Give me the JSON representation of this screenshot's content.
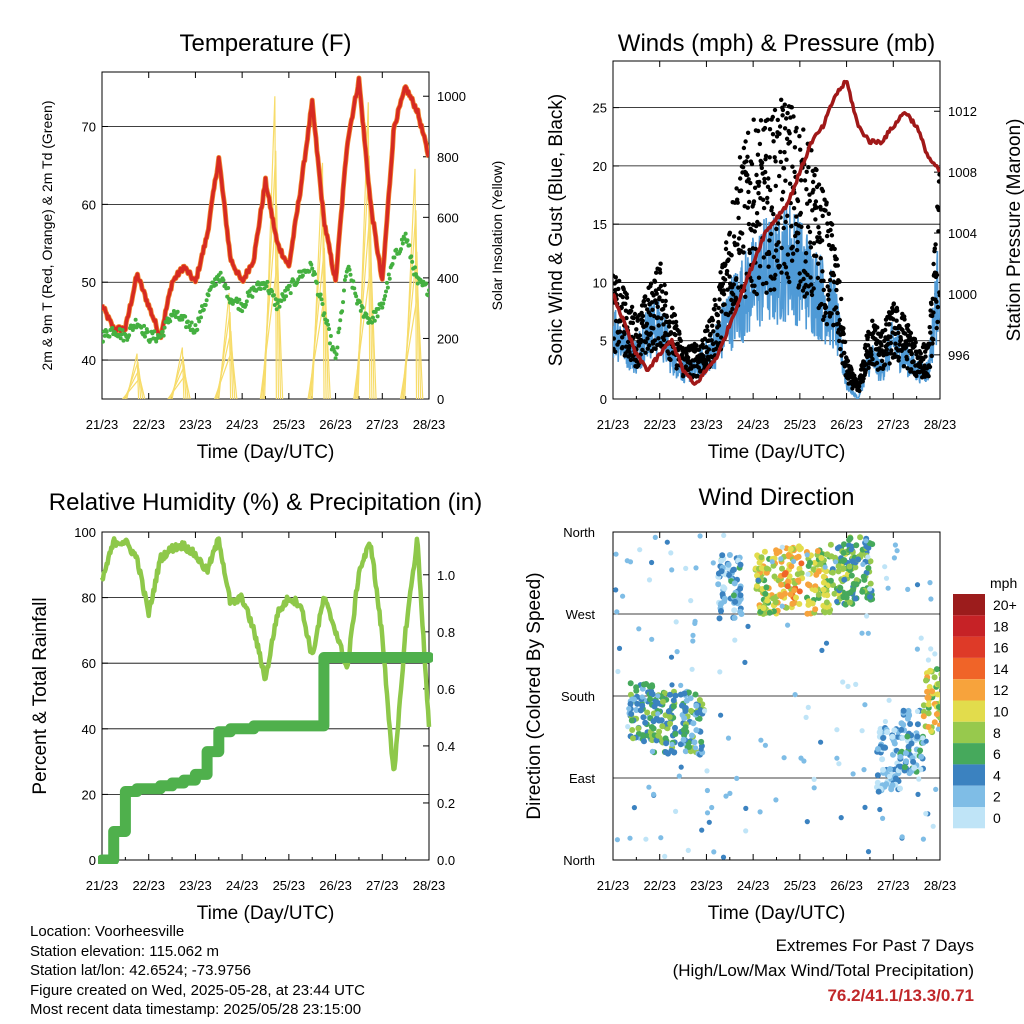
{
  "colors": {
    "t2m": "#d62a22",
    "t9m": "#f08a30",
    "td": "#44b040",
    "solar": "#f7dc6a",
    "wind": "#4f9ad6",
    "gust": "#000000",
    "pressure": "#a01818",
    "rh": "#8ec84a",
    "precip": "#4fb04c"
  },
  "x_ticks": [
    "21/23",
    "22/23",
    "23/23",
    "24/23",
    "25/23",
    "26/23",
    "27/23",
    "28/23"
  ],
  "x_label": "Time (Day/UTC)",
  "panels": {
    "temperature": {
      "title": "Temperature (F)",
      "ylabel_left": "2m & 9m T (Red, Orange) & 2m Td (Green)",
      "ylabel_right": "Solar Insolation (Yellow)"
    },
    "winds": {
      "title": "Winds (mph) & Pressure (mb)",
      "ylabel_left": "Sonic Wind & Gust (Blue, Black)",
      "ylabel_right": "Station Pressure (Maroon)"
    },
    "rh": {
      "title": "Relative Humidity (%) & Precipitation (in)",
      "ylabel_left": "Percent & Total Rainfall"
    },
    "direction": {
      "title": "Wind Direction",
      "ylabel_left": "Direction (Colored By Speed)",
      "legend_title": "mph"
    }
  },
  "info": [
    "Location: Voorheesville",
    "Station elevation: 115.062 m",
    "Station lat/lon: 42.6524; -73.9756",
    "Figure created on Wed, 2025-05-28, at 23:44 UTC",
    "Most recent data timestamp: 2025/05/28 23:15:00"
  ],
  "extremes": {
    "line1": "Extremes For Past 7 Days",
    "line2": "(High/Low/Max Wind/Total Precipitation)",
    "values": "76.2/41.1/13.3/0.71"
  },
  "chart_data": [
    {
      "type": "line",
      "panel": "temperature",
      "x": [
        0,
        0.25,
        0.5,
        0.75,
        1,
        1.25,
        1.5,
        1.75,
        2,
        2.25,
        2.5,
        2.75,
        3,
        3.25,
        3.5,
        3.75,
        4,
        4.25,
        4.5,
        4.75,
        5,
        5.25,
        5.5,
        5.75,
        6,
        6.25,
        6.5,
        6.75,
        7
      ],
      "series": [
        {
          "name": "2m T",
          "values": [
            47,
            44,
            44,
            51,
            47,
            43,
            50,
            52,
            50,
            56,
            66,
            53,
            50,
            53,
            63,
            55,
            52,
            62,
            73,
            58,
            50,
            68,
            76,
            60,
            50,
            70,
            75,
            72,
            66
          ]
        },
        {
          "name": "2m Td",
          "values": [
            43,
            44,
            43,
            45,
            43,
            43,
            46,
            45,
            44,
            48,
            51,
            48,
            47,
            49,
            50,
            47,
            49,
            51,
            52,
            46,
            40,
            52,
            47,
            45,
            47,
            53,
            56,
            50,
            49
          ]
        }
      ],
      "solar_peaks": [
        {
          "x": 0.75,
          "value": 150
        },
        {
          "x": 1.72,
          "value": 170
        },
        {
          "x": 2.72,
          "value": 350
        },
        {
          "x": 3.7,
          "value": 1000
        },
        {
          "x": 4.72,
          "value": 780
        },
        {
          "x": 5.7,
          "value": 980
        },
        {
          "x": 6.7,
          "value": 760
        }
      ],
      "ylim": [
        35,
        77
      ],
      "yticks": [
        40,
        50,
        60,
        70
      ],
      "ylim_right": [
        0,
        1080
      ],
      "yticks_right": [
        0,
        200,
        400,
        600,
        800,
        1000
      ]
    },
    {
      "type": "line",
      "panel": "winds",
      "x": [
        0,
        0.25,
        0.5,
        0.75,
        1,
        1.25,
        1.5,
        1.75,
        2,
        2.25,
        2.5,
        2.75,
        3,
        3.25,
        3.5,
        3.75,
        4,
        4.25,
        4.5,
        4.75,
        5,
        5.25,
        5.5,
        5.75,
        6,
        6.25,
        6.5,
        6.75,
        7
      ],
      "series": [
        {
          "name": "Sonic Wind",
          "values": [
            5,
            4,
            3,
            5,
            5,
            3,
            2,
            2,
            3,
            4,
            6,
            7,
            8,
            9,
            9,
            10,
            9,
            8,
            7,
            6,
            1,
            0,
            3,
            2,
            4,
            3,
            2,
            2,
            9
          ]
        },
        {
          "name": "Gust",
          "values": [
            9,
            8,
            6,
            8,
            10,
            7,
            4,
            4,
            5,
            8,
            14,
            18,
            20,
            20,
            21,
            22,
            20,
            18,
            15,
            12,
            3,
            1,
            6,
            5,
            7,
            6,
            4,
            4,
            17
          ]
        },
        {
          "name": "Station Pressure",
          "values": [
            1000,
            998,
            996,
            995,
            996,
            997,
            995,
            994,
            995,
            996,
            998,
            1000,
            1002,
            1004,
            1005,
            1006,
            1008,
            1010,
            1011,
            1013,
            1014,
            1011,
            1010,
            1010,
            1011,
            1012,
            1011,
            1009,
            1008
          ]
        }
      ],
      "ylim": [
        0,
        29
      ],
      "yticks": [
        0,
        5,
        10,
        15,
        20,
        25
      ],
      "ylim_right": [
        993.1,
        1015.3
      ],
      "yticks_right": [
        996,
        1000,
        1004,
        1008,
        1012
      ]
    },
    {
      "type": "line",
      "panel": "rh",
      "x": [
        0,
        0.25,
        0.5,
        0.75,
        1,
        1.25,
        1.5,
        1.75,
        2,
        2.25,
        2.5,
        2.75,
        3,
        3.25,
        3.5,
        3.75,
        4,
        4.25,
        4.5,
        4.75,
        5,
        5.25,
        5.5,
        5.75,
        6,
        6.25,
        6.5,
        6.75,
        7
      ],
      "series": [
        {
          "name": "Relative Humidity",
          "values": [
            85,
            97,
            97,
            92,
            75,
            92,
            95,
            96,
            93,
            88,
            98,
            78,
            80,
            70,
            55,
            75,
            80,
            78,
            62,
            80,
            70,
            58,
            88,
            97,
            68,
            25,
            70,
            98,
            40
          ]
        },
        {
          "name": "Total Rainfall",
          "values": [
            0,
            0.1,
            0.24,
            0.25,
            0.25,
            0.26,
            0.27,
            0.28,
            0.3,
            0.38,
            0.45,
            0.46,
            0.46,
            0.47,
            0.47,
            0.47,
            0.47,
            0.47,
            0.47,
            0.71,
            0.71,
            0.71,
            0.71,
            0.71,
            0.71,
            0.71,
            0.71,
            0.71,
            0.71
          ]
        }
      ],
      "ylim": [
        0,
        100
      ],
      "yticks": [
        0,
        20,
        40,
        60,
        80,
        100
      ],
      "ylim_right": [
        0,
        1.15
      ],
      "yticks_right": [
        0.0,
        0.2,
        0.4,
        0.6,
        0.8,
        1.0
      ]
    },
    {
      "type": "scatter",
      "panel": "direction",
      "yticks": [
        "North",
        "East",
        "South",
        "West",
        "North"
      ],
      "ylim": [
        0,
        360
      ],
      "clusters": [
        {
          "x": 0.6,
          "dir": 160,
          "speed": 5
        },
        {
          "x": 1.1,
          "dir": 150,
          "speed": 6
        },
        {
          "x": 1.7,
          "dir": 150,
          "speed": 5
        },
        {
          "x": 2.5,
          "dir": 300,
          "speed": 3
        },
        {
          "x": 3.3,
          "dir": 305,
          "speed": 9
        },
        {
          "x": 3.8,
          "dir": 310,
          "speed": 11
        },
        {
          "x": 4.4,
          "dir": 305,
          "speed": 9
        },
        {
          "x": 4.9,
          "dir": 315,
          "speed": 7
        },
        {
          "x": 5.3,
          "dir": 320,
          "speed": 6
        },
        {
          "x": 5.9,
          "dir": 110,
          "speed": 2
        },
        {
          "x": 6.4,
          "dir": 130,
          "speed": 3
        },
        {
          "x": 6.9,
          "dir": 175,
          "speed": 9
        }
      ],
      "legend": [
        {
          "label": "20+",
          "color": "#9c1c1c"
        },
        {
          "label": "18",
          "color": "#c62226"
        },
        {
          "label": "16",
          "color": "#de3a28"
        },
        {
          "label": "14",
          "color": "#f06428"
        },
        {
          "label": "12",
          "color": "#f7a33c"
        },
        {
          "label": "10",
          "color": "#e2dc4c"
        },
        {
          "label": "8",
          "color": "#97c94d"
        },
        {
          "label": "6",
          "color": "#46a95c"
        },
        {
          "label": "4",
          "color": "#3b82c0"
        },
        {
          "label": "2",
          "color": "#7fbde6"
        },
        {
          "label": "0",
          "color": "#bfe4f7"
        }
      ]
    }
  ]
}
